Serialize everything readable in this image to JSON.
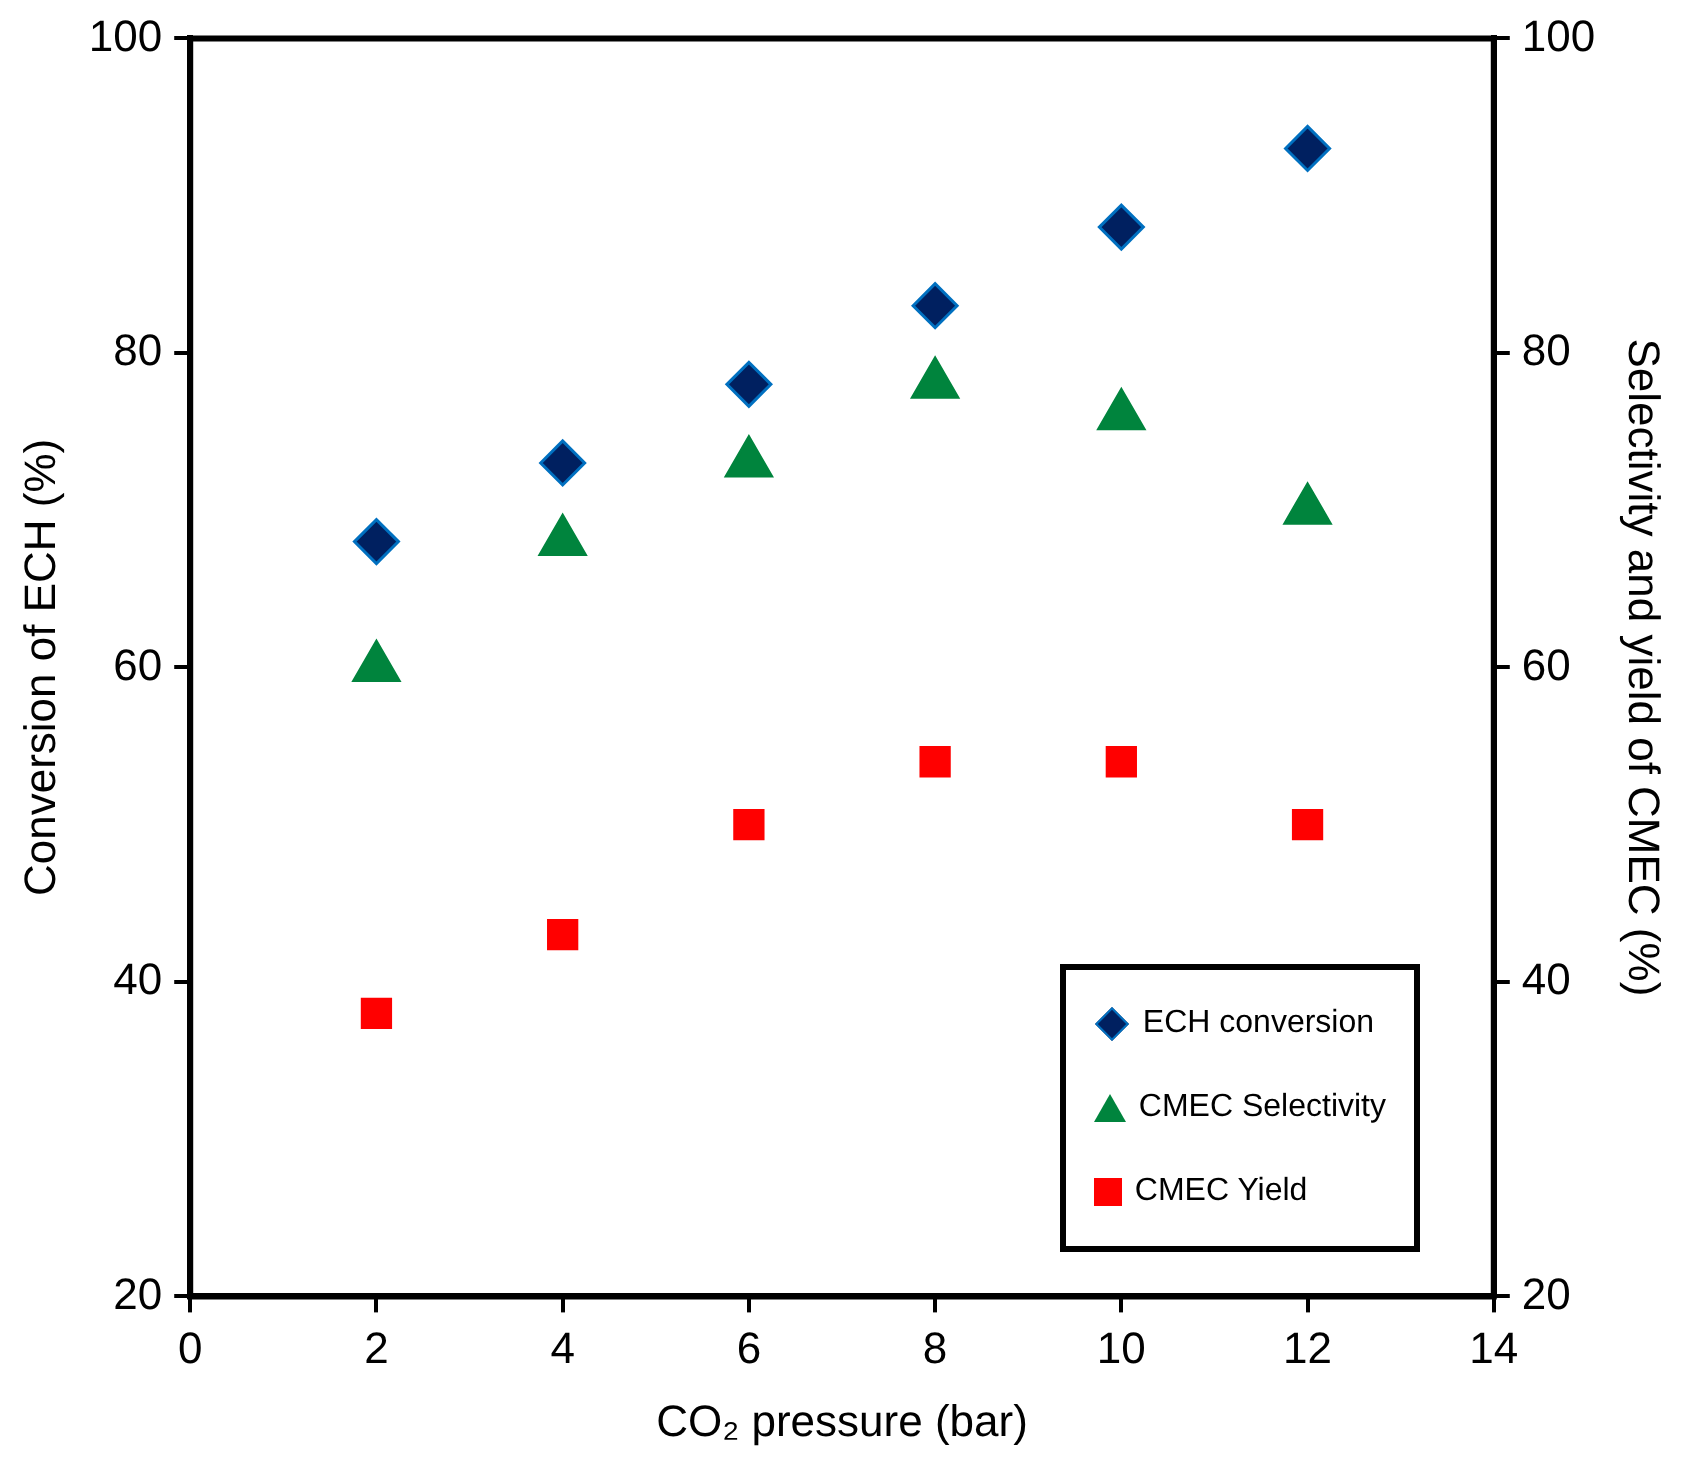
{
  "chart_data": {
    "type": "scatter",
    "xlabel": "CO₂ pressure (bar)",
    "ylabel": "Conversion of ECH (%)",
    "y2label": "Selectivity and yield of CMEC (%)",
    "x": [
      2,
      4,
      6,
      8,
      10,
      12
    ],
    "xlim": [
      0,
      14
    ],
    "xticks": [
      0,
      2,
      4,
      6,
      8,
      10,
      12,
      14
    ],
    "ylim": [
      20,
      100
    ],
    "yticks": [
      20,
      40,
      60,
      80,
      100
    ],
    "y2lim": [
      20,
      100
    ],
    "y2ticks": [
      20,
      40,
      60,
      80,
      100
    ],
    "grid": false,
    "legend": "bottom right",
    "series": [
      {
        "name": "ECH conversion",
        "color": "#002060",
        "marker": "diamond",
        "values": [
          68,
          73,
          78,
          83,
          88,
          93
        ]
      },
      {
        "name": "CMEC Selectivity",
        "color": "#00843d",
        "marker": "triangle",
        "values": [
          60,
          68,
          73,
          78,
          76,
          70
        ]
      },
      {
        "name": "CMEC Yield",
        "color": "#ff0000",
        "marker": "square",
        "values": [
          38,
          43,
          50,
          54,
          54,
          50
        ]
      }
    ]
  }
}
